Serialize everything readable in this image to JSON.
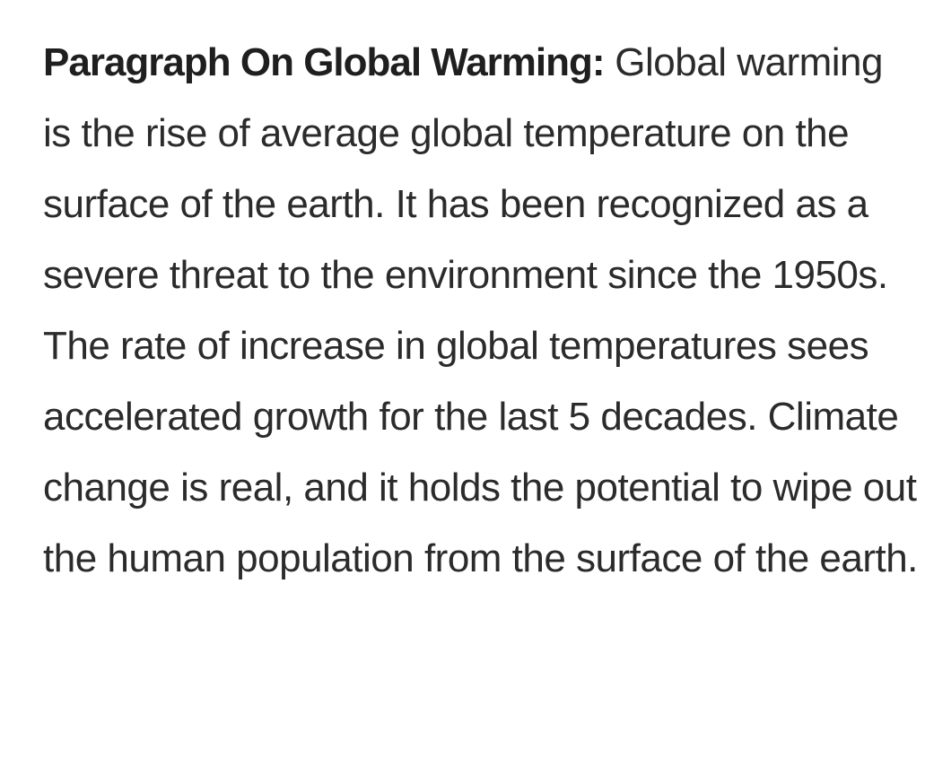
{
  "article": {
    "lead": "Paragraph On Global Warming:",
    "body": " Global warming is the rise of average global temperature on the surface of the earth. It has been recognized as a severe threat to the environment since the 1950s. The rate of increase in global temperatures sees accelerated growth for the last 5 decades. Climate change is real, and it holds the potential to wipe out the human population from the surface of the earth."
  }
}
